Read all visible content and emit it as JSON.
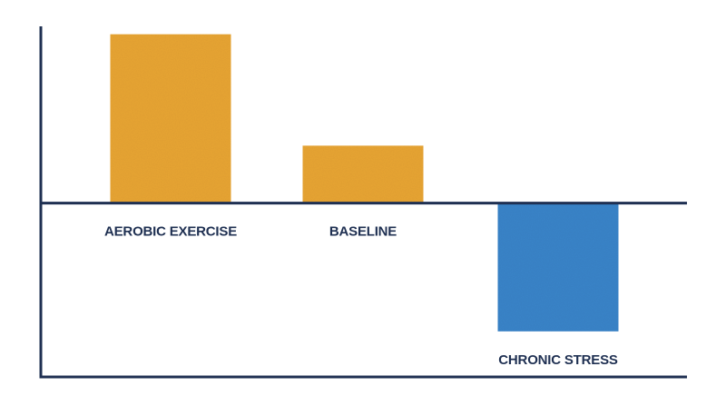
{
  "chart_data": {
    "type": "bar",
    "categories": [
      "AEROBIC EXERCISE",
      "BASELINE",
      "CHRONIC STRESS"
    ],
    "values": [
      1.0,
      0.34,
      -0.76
    ],
    "ylim": [
      -1.03,
      1.02
    ],
    "grid": false,
    "title": "",
    "xlabel": "",
    "ylabel": "",
    "colors": {
      "positive_bar": "#E8A532",
      "negative_bar": "#3A84C9",
      "axis": "#1F3052",
      "label_text": "#1F3052"
    }
  }
}
